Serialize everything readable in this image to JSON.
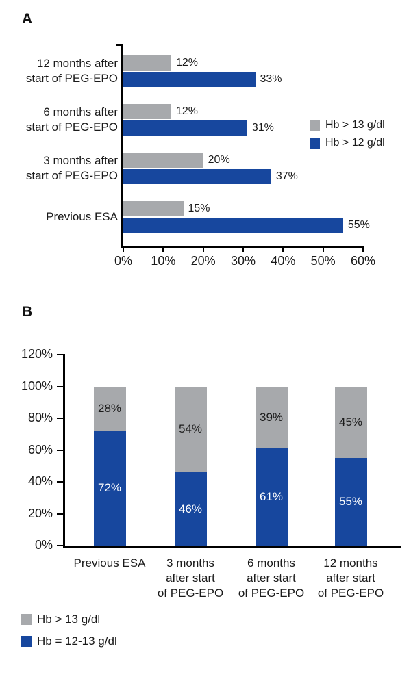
{
  "panels": [
    {
      "label": "A"
    },
    {
      "label": "B"
    }
  ],
  "colors": {
    "blue": "#17479e",
    "gray": "#a7a9ac",
    "axis": "#000000",
    "label_dark": "#1a1a1a",
    "label_light": "#ffffff"
  },
  "chart_data": [
    {
      "panel": "A",
      "type": "bar",
      "orientation": "horizontal",
      "mode": "grouped",
      "categories": [
        "12 months after start of PEG-EPO",
        "6 months after start of PEG-EPO",
        "3 months after start of PEG-EPO",
        "Previous ESA"
      ],
      "category_lines": [
        [
          "12 months after",
          "start of PEG-EPO"
        ],
        [
          "6 months after",
          "start of PEG-EPO"
        ],
        [
          "3 months after",
          "start of PEG-EPO"
        ],
        [
          "Previous ESA"
        ]
      ],
      "series": [
        {
          "name": "Hb > 13 g/dl",
          "color_key": "gray",
          "values": [
            12,
            12,
            20,
            15
          ]
        },
        {
          "name": "Hb > 12 g/dl",
          "color_key": "blue",
          "values": [
            33,
            31,
            37,
            55
          ]
        }
      ],
      "xlim": [
        0,
        60
      ],
      "x_tick_labels": [
        "0%",
        "10%",
        "20%",
        "30%",
        "40%",
        "50%",
        "60%"
      ],
      "value_suffix": "%",
      "value_label_position": "outside-end",
      "grid": false,
      "legend": {
        "position": "right",
        "items": [
          {
            "label": "Hb > 13 g/dl",
            "color_key": "gray"
          },
          {
            "label": "Hb > 12 g/dl",
            "color_key": "blue"
          }
        ]
      }
    },
    {
      "panel": "B",
      "type": "bar",
      "orientation": "vertical",
      "mode": "stacked",
      "categories": [
        "Previous ESA",
        "3 months after start of PEG-EPO",
        "6 months after start of PEG-EPO",
        "12 months after start of PEG-EPO"
      ],
      "category_lines": [
        [
          "Previous ESA"
        ],
        [
          "3 months",
          "after start",
          "of PEG-EPO"
        ],
        [
          "6 months",
          "after start",
          "of PEG-EPO"
        ],
        [
          "12 months",
          "after start",
          "of PEG-EPO"
        ]
      ],
      "series": [
        {
          "name": "Hb = 12-13 g/dl",
          "color_key": "blue",
          "values": [
            72,
            46,
            61,
            55
          ]
        },
        {
          "name": "Hb > 13 g/dl",
          "color_key": "gray",
          "values": [
            28,
            54,
            39,
            45
          ]
        }
      ],
      "ylim": [
        0,
        120
      ],
      "y_tick_labels": [
        "0%",
        "20%",
        "40%",
        "60%",
        "80%",
        "100%",
        "120%"
      ],
      "value_suffix": "%",
      "value_label_position": "inside-center",
      "grid": false,
      "legend": {
        "position": "bottom-left",
        "items": [
          {
            "label": "Hb > 13 g/dl",
            "color_key": "gray"
          },
          {
            "label": "Hb = 12-13 g/dl",
            "color_key": "blue"
          }
        ]
      }
    }
  ]
}
